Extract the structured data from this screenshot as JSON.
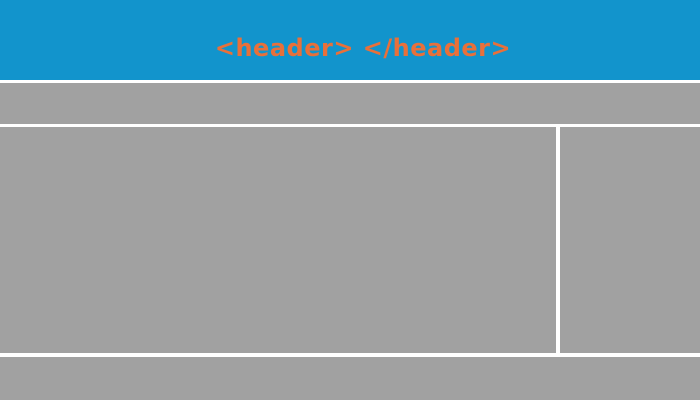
{
  "header": {
    "label": "<header> </header>"
  },
  "colors": {
    "header_bg": "#1294cc",
    "header_text": "#e8703a",
    "block_bg": "#a1a1a1",
    "separator": "#ffffff"
  }
}
